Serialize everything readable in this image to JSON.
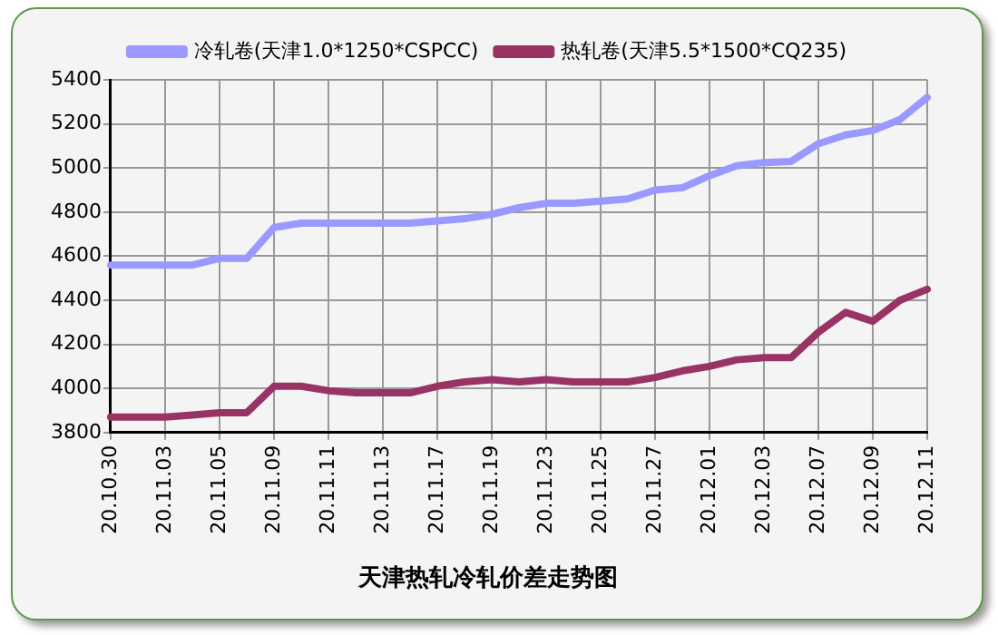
{
  "chart_data": {
    "type": "line",
    "title": "天津热轧冷轧价差走势图",
    "categories": [
      "20.10.30",
      null,
      "20.11.03",
      null,
      "20.11.05",
      null,
      "20.11.09",
      null,
      "20.11.11",
      null,
      "20.11.13",
      null,
      "20.11.17",
      null,
      "20.11.19",
      null,
      "20.11.23",
      null,
      "20.11.25",
      null,
      "20.11.27",
      null,
      "20.12.01",
      null,
      "20.12.03",
      null,
      "20.12.07",
      null,
      "20.12.09",
      null,
      "20.12.11"
    ],
    "series": [
      {
        "name": "冷轧卷(天津1.0*1250*CSPCC)",
        "color": "#9999ff",
        "values": [
          4560,
          4560,
          4560,
          4560,
          4590,
          4590,
          4730,
          4750,
          4750,
          4750,
          4750,
          4750,
          4760,
          4770,
          4790,
          4820,
          4840,
          4840,
          4850,
          4860,
          4900,
          4910,
          4965,
          5010,
          5025,
          5030,
          5110,
          5150,
          5170,
          5220,
          5320
        ]
      },
      {
        "name": "热轧卷(天津5.5*1500*CQ235)",
        "color": "#993366",
        "values": [
          3870,
          3870,
          3870,
          3880,
          3890,
          3890,
          4010,
          4010,
          3990,
          3980,
          3980,
          3980,
          4010,
          4030,
          4040,
          4030,
          4040,
          4030,
          4030,
          4030,
          4050,
          4080,
          4100,
          4130,
          4140,
          4140,
          4255,
          4345,
          4305,
          4400,
          4450
        ]
      }
    ],
    "ylim": [
      3800,
      5400
    ],
    "yticks": [
      3800,
      4000,
      4200,
      4400,
      4600,
      4800,
      5000,
      5200,
      5400
    ],
    "grid": true,
    "legend": "top",
    "marker": "none",
    "line_style": "solid"
  }
}
